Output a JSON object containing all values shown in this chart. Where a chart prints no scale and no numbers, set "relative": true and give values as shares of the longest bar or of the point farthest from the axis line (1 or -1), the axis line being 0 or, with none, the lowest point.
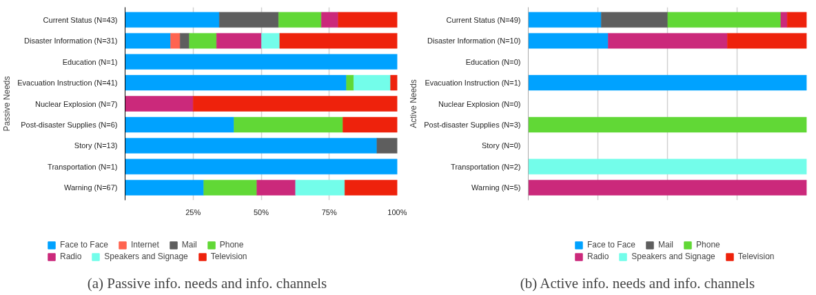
{
  "chart_data": [
    {
      "type": "bar",
      "orientation": "horizontal",
      "stacked": true,
      "title": "(a) Passive info. needs and info. channels",
      "ylabel": "Passive Needs",
      "categories": [
        "Current Status (N=43)",
        "Disaster Information (N=31)",
        "Education (N=1)",
        "Evacuation Instruction (N=41)",
        "Nuclear Explosion (N=7)",
        "Post-disaster Supplies (N=6)",
        "Story (N=13)",
        "Transportation (N=1)",
        "Warning (N=67)"
      ],
      "series": [
        {
          "name": "Face to Face",
          "color": "#00a2ff",
          "values": [
            34.6,
            16.7,
            100,
            81.3,
            null,
            40,
            92.5,
            100,
            28.9
          ]
        },
        {
          "name": "Internet",
          "color": "#ff6450",
          "values": [
            null,
            3.5,
            null,
            null,
            null,
            null,
            null,
            null,
            null
          ]
        },
        {
          "name": "Mail",
          "color": "#5e5e5e",
          "values": [
            21.8,
            3.4,
            null,
            null,
            null,
            null,
            7.5,
            null,
            null
          ]
        },
        {
          "name": "Phone",
          "color": "#61d836",
          "values": [
            15.7,
            10.0,
            null,
            2.7,
            null,
            40,
            null,
            null,
            19.5
          ]
        },
        {
          "name": "Radio",
          "color": "#cb297b",
          "values": [
            6.2,
            16.5,
            null,
            null,
            25,
            null,
            null,
            null,
            14.2
          ]
        },
        {
          "name": "Speakers and Signage",
          "color": "#73fdea",
          "values": [
            null,
            6.7,
            null,
            13.5,
            null,
            null,
            null,
            null,
            18.1
          ]
        },
        {
          "name": "Television",
          "color": "#ee220c",
          "values": [
            21.7,
            43.2,
            null,
            2.5,
            75,
            20,
            null,
            null,
            19.3
          ]
        }
      ],
      "xlim": [
        0,
        100
      ],
      "xticks": [
        {
          "value": 25,
          "label": "25%"
        },
        {
          "value": 50,
          "label": "50%"
        },
        {
          "value": 75,
          "label": "75%"
        },
        {
          "value": 100,
          "label": "100%"
        }
      ],
      "grid": "x",
      "legend": "bottom"
    },
    {
      "type": "bar",
      "orientation": "horizontal",
      "stacked": true,
      "relative": true,
      "title": "(b) Active info. needs and info. channels",
      "ylabel": "Active Needs",
      "categories": [
        "Current Status (N=49)",
        "Disaster Information (N=10)",
        "Education (N=0)",
        "Evacuation Instruction (N=1)",
        "Nuclear Explosion (N=0)",
        "Post-disaster Supplies (N=3)",
        "Story (N=0)",
        "Transportation (N=2)",
        "Warning (N=5)"
      ],
      "series": [
        {
          "name": "Face to Face",
          "color": "#00a2ff",
          "values": [
            0.262,
            0.287,
            null,
            1,
            null,
            null,
            null,
            null,
            null
          ]
        },
        {
          "name": "Mail",
          "color": "#5e5e5e",
          "values": [
            0.239,
            null,
            null,
            null,
            null,
            null,
            null,
            null,
            null
          ]
        },
        {
          "name": "Phone",
          "color": "#61d836",
          "values": [
            0.406,
            null,
            null,
            null,
            null,
            1,
            null,
            null,
            null
          ]
        },
        {
          "name": "Radio",
          "color": "#cb297b",
          "values": [
            0.023,
            0.428,
            null,
            null,
            null,
            null,
            null,
            null,
            1
          ]
        },
        {
          "name": "Speakers and Signage",
          "color": "#73fdea",
          "values": [
            null,
            null,
            null,
            null,
            null,
            null,
            null,
            1,
            null
          ]
        },
        {
          "name": "Television",
          "color": "#ee220c",
          "values": [
            0.07,
            0.285,
            null,
            null,
            null,
            null,
            null,
            null,
            null
          ]
        }
      ],
      "grid": "x",
      "legend": "bottom"
    }
  ]
}
